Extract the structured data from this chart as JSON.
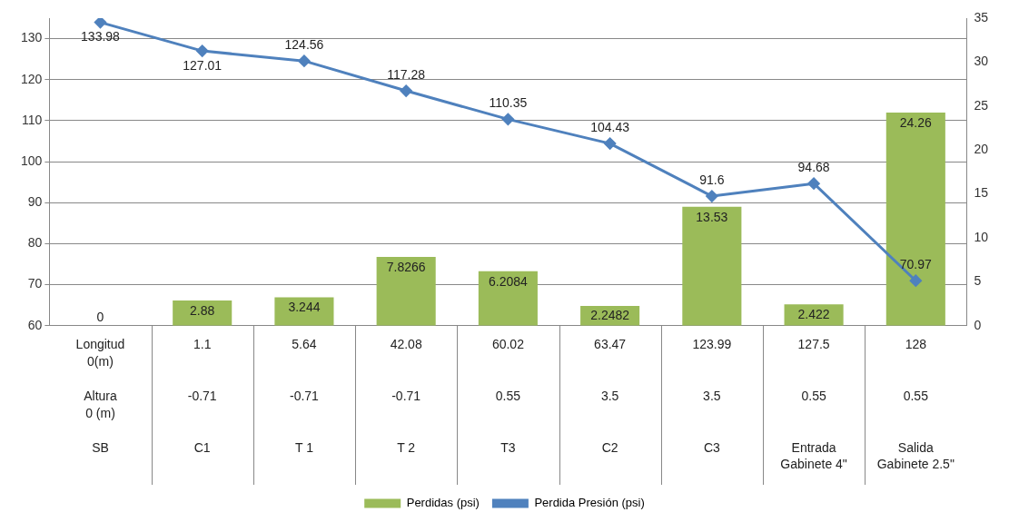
{
  "chart_data": {
    "type": "bar",
    "categories": [
      "Longitud\n0(m)\n\nAltura\n0 (m)\n\nSB",
      "1.1\n\n\n-0.71\n\n\nC1",
      "5.64\n\n\n-0.71\n\n\nT 1",
      "42.08\n\n\n-0.71\n\n\nT 2",
      "60.02\n\n\n0.55\n\n\nT3",
      "63.47\n\n\n3.5\n\n\nC2",
      "123.99\n\n\n3.5\n\n\nC3",
      "127.5\n\n\n0.55\n\n\nEntrada\nGabinete 4\"",
      "128\n\n\n0.55\n\n\nSalida\nGabinete 2.5\""
    ],
    "series": [
      {
        "name": "Perdidas (psi)",
        "axis": "y2",
        "color": "#9bbb59",
        "values": [
          0,
          2.88,
          3.244,
          7.8266,
          6.2084,
          2.2482,
          13.53,
          2.422,
          24.26
        ]
      },
      {
        "name": "Perdida Presión (psi)",
        "type": "line",
        "axis": "y",
        "color": "#4f81bd",
        "marker": "diamond",
        "values": [
          133.98,
          127.01,
          124.56,
          117.28,
          110.35,
          104.43,
          91.6,
          94.68,
          70.97
        ]
      }
    ],
    "ylim": [
      60,
      135
    ],
    "yticks": [
      60,
      70,
      80,
      90,
      100,
      110,
      120,
      130
    ],
    "y2lim": [
      0,
      35
    ],
    "y2ticks": [
      0,
      5,
      10,
      15,
      20,
      25,
      30,
      35
    ],
    "grid": "y",
    "legend": "bottom",
    "data_labels": true
  }
}
